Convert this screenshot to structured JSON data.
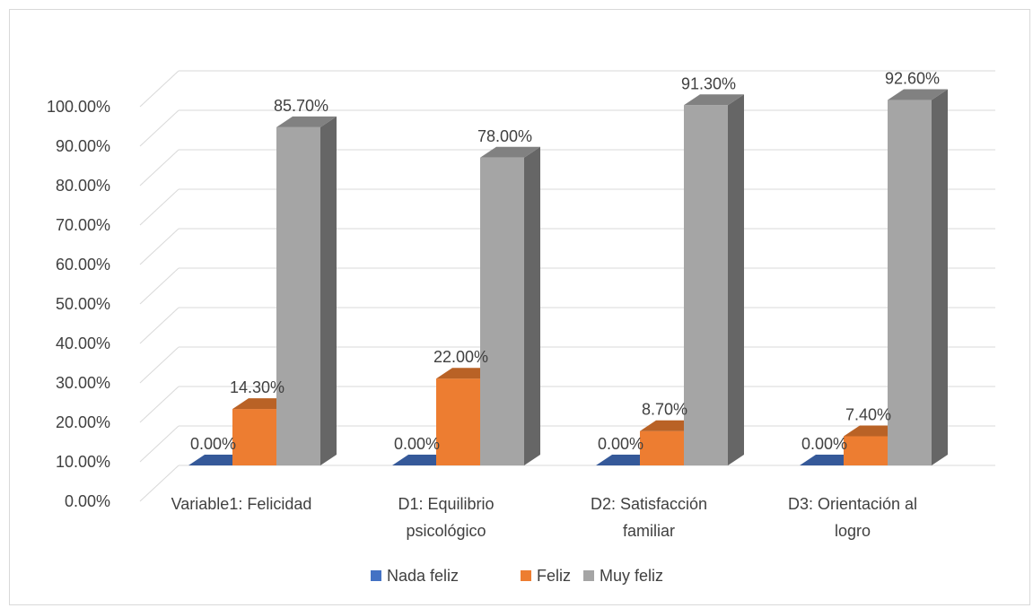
{
  "chart_data": {
    "type": "bar",
    "categories": [
      [
        "Variable1: Felicidad"
      ],
      [
        "D1: Equilibrio",
        "psicológico"
      ],
      [
        "D2: Satisfacción",
        "familiar"
      ],
      [
        "D3: Orientación al",
        "logro"
      ]
    ],
    "series": [
      {
        "name": "Nada feliz",
        "values": [
          0,
          0,
          0,
          0
        ],
        "labels": [
          "0.00%",
          "0.00%",
          "0.00%",
          "0.00%"
        ],
        "color": "#4472C4"
      },
      {
        "name": "Feliz",
        "values": [
          14.3,
          22.0,
          8.7,
          7.4
        ],
        "labels": [
          "14.30%",
          "22.00%",
          "8.70%",
          "7.40%"
        ],
        "color": "#ED7D31"
      },
      {
        "name": "Muy feliz",
        "values": [
          85.7,
          78.0,
          91.3,
          92.6
        ],
        "labels": [
          "85.70%",
          "78.00%",
          "91.30%",
          "92.60%"
        ],
        "color": "#A5A5A5"
      }
    ],
    "yticks": [
      "0.00%",
      "10.00%",
      "20.00%",
      "30.00%",
      "40.00%",
      "50.00%",
      "60.00%",
      "70.00%",
      "80.00%",
      "90.00%",
      "100.00%"
    ],
    "ylim": [
      0,
      100
    ],
    "grid": true,
    "legend": "bottom",
    "style": "3d-clustered-column"
  }
}
